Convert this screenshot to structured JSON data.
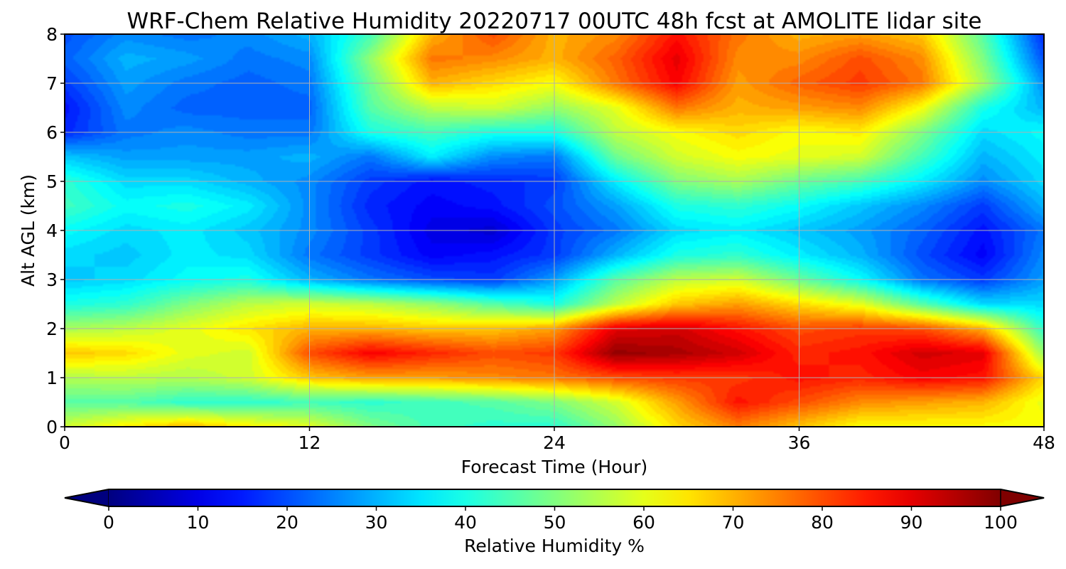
{
  "chart_data": {
    "type": "heatmap",
    "title": "WRF-Chem Relative Humidity 20220717 00UTC 48h fcst at AMOLITE lidar site",
    "xlabel": "Forecast Time (Hour)",
    "ylabel": "Alt AGL (km)",
    "xlim": [
      0,
      48
    ],
    "ylim": [
      0,
      8
    ],
    "x_ticks": [
      "0",
      "12",
      "24",
      "36",
      "48"
    ],
    "y_ticks": [
      "0",
      "1",
      "2",
      "3",
      "4",
      "5",
      "6",
      "7",
      "8"
    ],
    "grid": true,
    "colorbar": {
      "label": "Relative Humidity %",
      "ticks": [
        "0",
        "10",
        "20",
        "30",
        "40",
        "50",
        "60",
        "70",
        "80",
        "90",
        "100"
      ],
      "range": [
        0,
        100
      ],
      "extend": "both",
      "colormap": "jet"
    },
    "x": [
      0,
      3,
      6,
      9,
      12,
      15,
      18,
      21,
      24,
      27,
      30,
      33,
      36,
      39,
      42,
      45,
      48
    ],
    "y": [
      0,
      0.5,
      1,
      1.5,
      2,
      2.5,
      3,
      3.5,
      4,
      4.5,
      5,
      5.5,
      6,
      6.5,
      7,
      7.5,
      8
    ],
    "z": [
      [
        58,
        64,
        70,
        64,
        60,
        50,
        44,
        42,
        42,
        52,
        66,
        75,
        68,
        62,
        62,
        62,
        62
      ],
      [
        46,
        46,
        42,
        42,
        44,
        42,
        44,
        46,
        50,
        58,
        72,
        86,
        80,
        74,
        72,
        70,
        60
      ],
      [
        55,
        56,
        55,
        58,
        68,
        72,
        72,
        74,
        76,
        80,
        82,
        82,
        86,
        84,
        88,
        86,
        66
      ],
      [
        68,
        66,
        60,
        58,
        80,
        88,
        84,
        80,
        82,
        98,
        96,
        92,
        84,
        86,
        92,
        90,
        52
      ],
      [
        54,
        56,
        60,
        65,
        70,
        70,
        68,
        68,
        72,
        90,
        92,
        86,
        80,
        82,
        80,
        70,
        42
      ],
      [
        40,
        42,
        50,
        56,
        58,
        56,
        52,
        46,
        40,
        56,
        68,
        72,
        66,
        60,
        46,
        34,
        34
      ],
      [
        32,
        34,
        38,
        40,
        30,
        24,
        20,
        18,
        28,
        46,
        56,
        58,
        48,
        38,
        24,
        18,
        28
      ],
      [
        34,
        32,
        36,
        34,
        24,
        18,
        12,
        14,
        18,
        30,
        40,
        42,
        36,
        30,
        20,
        12,
        26
      ],
      [
        38,
        34,
        36,
        32,
        26,
        18,
        10,
        8,
        18,
        24,
        34,
        36,
        32,
        28,
        22,
        14,
        24
      ],
      [
        44,
        38,
        40,
        36,
        26,
        16,
        12,
        14,
        20,
        28,
        40,
        42,
        38,
        32,
        26,
        18,
        30
      ],
      [
        42,
        34,
        34,
        30,
        26,
        18,
        14,
        16,
        18,
        36,
        50,
        54,
        48,
        44,
        36,
        26,
        34
      ],
      [
        32,
        28,
        28,
        28,
        30,
        24,
        36,
        26,
        24,
        48,
        58,
        62,
        60,
        58,
        44,
        30,
        36
      ],
      [
        16,
        24,
        26,
        24,
        24,
        40,
        44,
        40,
        40,
        56,
        62,
        66,
        62,
        64,
        50,
        34,
        38
      ],
      [
        14,
        26,
        22,
        22,
        22,
        46,
        56,
        58,
        52,
        60,
        76,
        70,
        72,
        74,
        62,
        40,
        30
      ],
      [
        18,
        28,
        24,
        22,
        24,
        48,
        70,
        66,
        62,
        76,
        88,
        72,
        78,
        82,
        76,
        54,
        26
      ],
      [
        22,
        30,
        28,
        24,
        26,
        52,
        76,
        74,
        70,
        78,
        90,
        74,
        74,
        80,
        74,
        50,
        20
      ],
      [
        20,
        26,
        24,
        26,
        30,
        44,
        70,
        80,
        70,
        74,
        86,
        76,
        70,
        72,
        68,
        46,
        16
      ]
    ]
  }
}
